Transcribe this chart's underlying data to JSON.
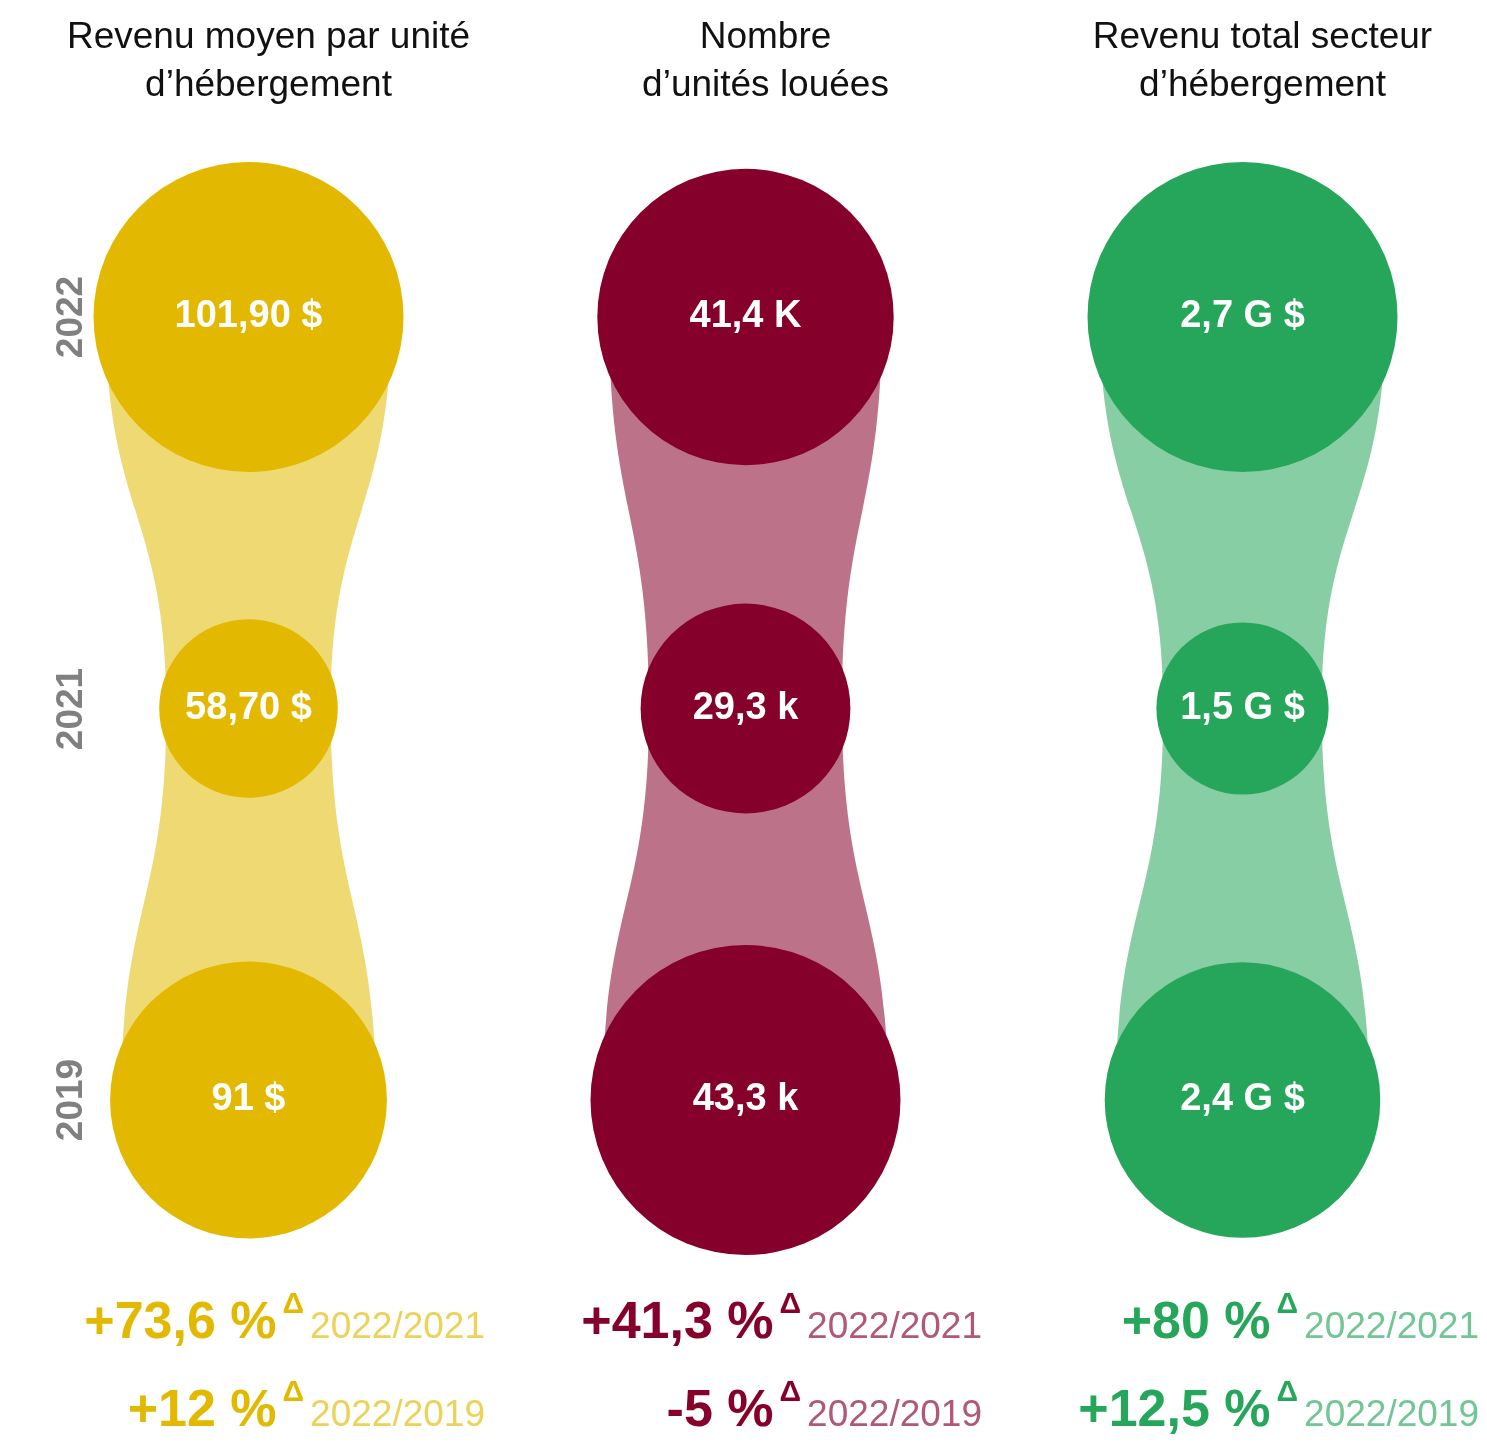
{
  "chart_data": [
    {
      "type": "other",
      "title": "Revenu moyen par unité\nd’hébergement",
      "categories": [
        "2022",
        "2021",
        "2019"
      ],
      "values": [
        101.9,
        58.7,
        91
      ],
      "value_labels": [
        "101,90 $",
        "58,70 $",
        "91 $"
      ],
      "color": "#e2b900",
      "annotations": [
        "+73,6 %$^{Δ}$2022/2021",
        "+12 %$^{Δ}$2022/2019"
      ]
    },
    {
      "type": "other",
      "title": "Nombre\nd’unités louées",
      "categories": [
        null,
        null,
        null
      ],
      "values": [
        41.4,
        29.3,
        43.3
      ],
      "value_labels": [
        "41,4 K",
        "29,3 k",
        "43,3 k"
      ],
      "color": "#85002a",
      "annotations": [
        "+41,3 %$^{Δ}$2022/2021",
        "-5 %$^{Δ}$2022/2019"
      ]
    },
    {
      "type": "other",
      "title": "Revenu total secteur\nd’hébergement",
      "categories": [
        null,
        null,
        null
      ],
      "values": [
        2.7,
        1.5,
        2.4
      ],
      "value_labels": [
        "2,7 G $",
        "1,5 G $",
        "2,4 G $"
      ],
      "color": "#26a65a",
      "annotations": [
        "+80 %$^{Δ}$2022/2021",
        "+12,5 %$^{Δ}$2022/2019"
      ]
    }
  ]
}
